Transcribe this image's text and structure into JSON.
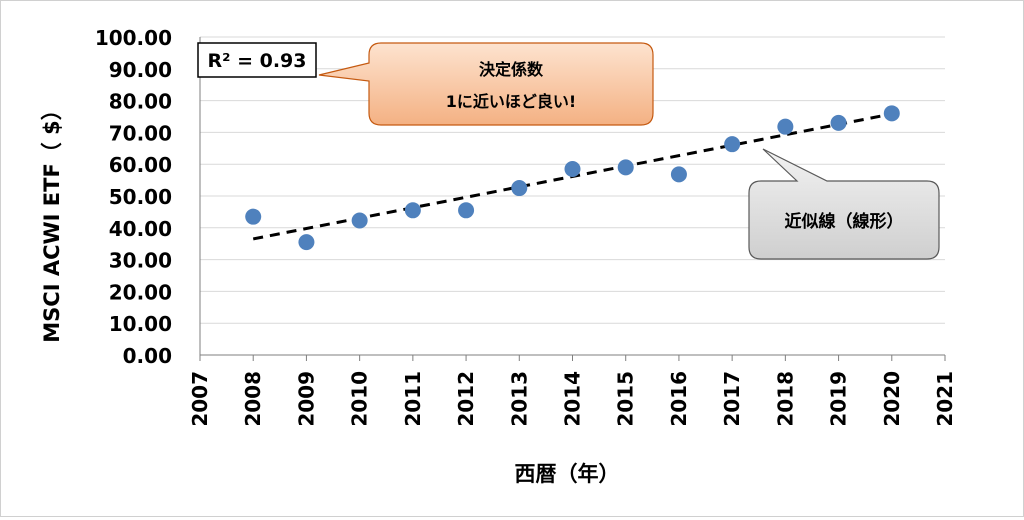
{
  "chart_data": {
    "type": "scatter",
    "xlabel": "西暦（年）",
    "ylabel": "MSCI ACWI ETF（ $）",
    "xlim": [
      2007,
      2021
    ],
    "ylim": [
      0,
      100
    ],
    "x_ticks": [
      "2007",
      "2008",
      "2009",
      "2010",
      "2011",
      "2012",
      "2013",
      "2014",
      "2015",
      "2016",
      "2017",
      "2018",
      "2019",
      "2020",
      "2021"
    ],
    "y_ticks": [
      "0.00",
      "10.00",
      "20.00",
      "30.00",
      "40.00",
      "50.00",
      "60.00",
      "70.00",
      "80.00",
      "90.00",
      "100.00"
    ],
    "grid": "horizontal",
    "points": [
      {
        "x": 2008,
        "y": 43.5
      },
      {
        "x": 2009,
        "y": 35.5
      },
      {
        "x": 2010,
        "y": 42.3
      },
      {
        "x": 2011,
        "y": 45.5
      },
      {
        "x": 2012,
        "y": 45.5
      },
      {
        "x": 2013,
        "y": 52.5
      },
      {
        "x": 2014,
        "y": 58.5
      },
      {
        "x": 2015,
        "y": 59.0
      },
      {
        "x": 2016,
        "y": 56.8
      },
      {
        "x": 2017,
        "y": 66.3
      },
      {
        "x": 2018,
        "y": 71.8
      },
      {
        "x": 2019,
        "y": 73.0
      },
      {
        "x": 2020,
        "y": 76.0
      }
    ],
    "trendline": {
      "type": "linear",
      "from": {
        "x": 2008,
        "y": 36.5
      },
      "to": {
        "x": 2020,
        "y": 75.8
      }
    },
    "r_squared_label": "R² = 0.93",
    "callouts": {
      "r2_note_line1": "決定係数",
      "r2_note_line2": "1に近いほど良い!",
      "trend_note": "近似線（線形）"
    },
    "colors": {
      "point": "#4f81bd",
      "trendline": "#000000",
      "grid": "#d9d9d9",
      "r2_callout_fill": "#f8c9a6",
      "trend_callout_fill": "#d9d9d9"
    }
  }
}
